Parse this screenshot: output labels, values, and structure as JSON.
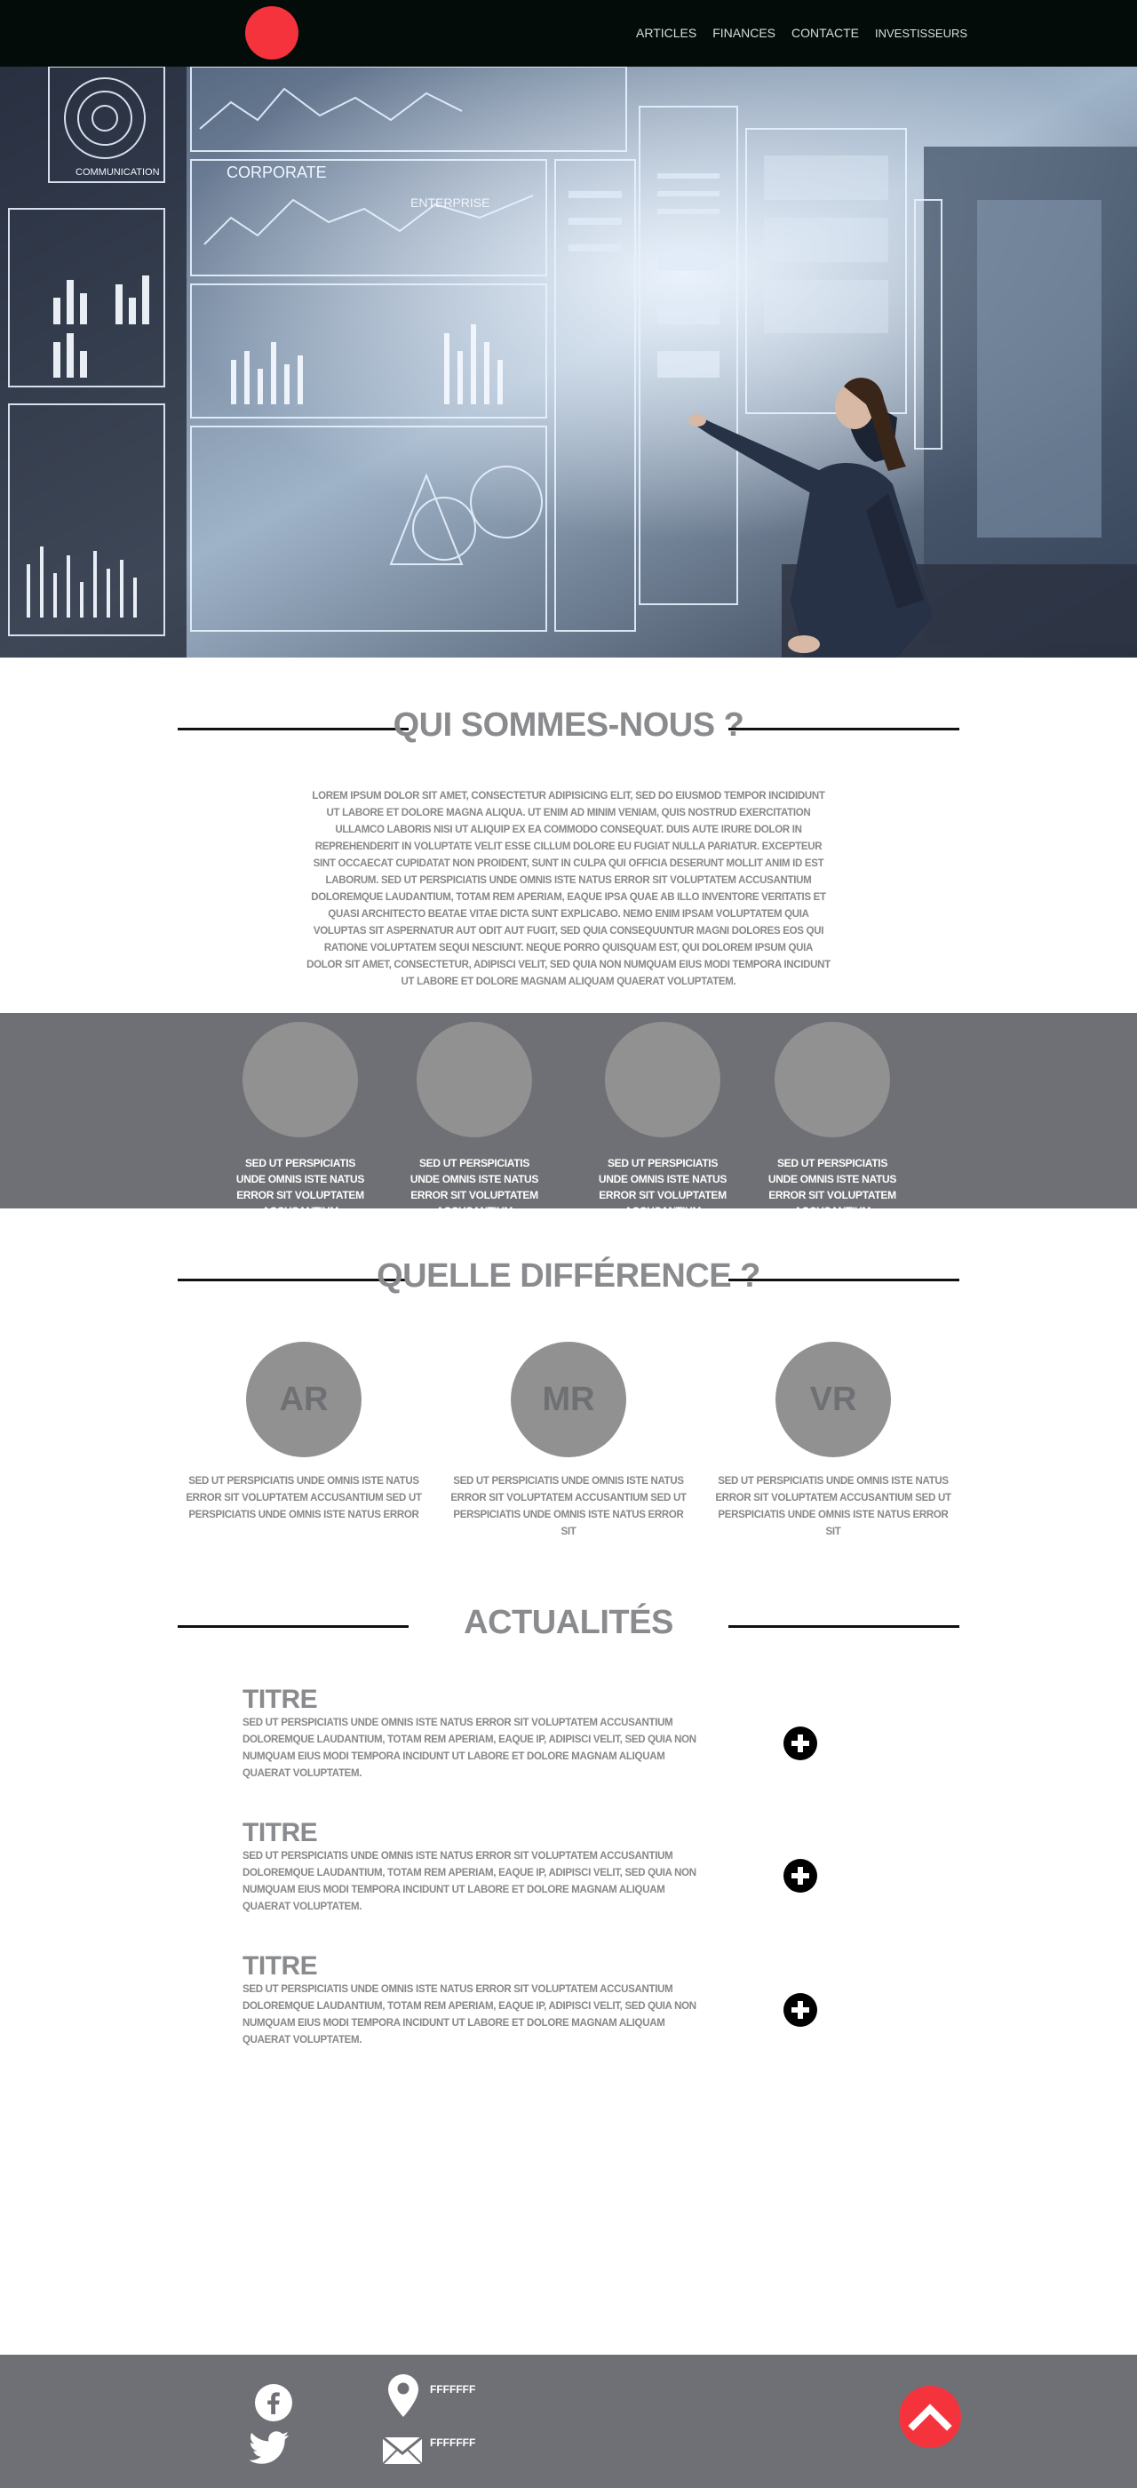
{
  "nav": {
    "items": [
      {
        "label": "ARTICLES"
      },
      {
        "label": "FINANCES"
      },
      {
        "label": "CONTACTE"
      },
      {
        "label": "INVESTISSEURS"
      }
    ]
  },
  "hero": {
    "panel_labels": [
      "COMMUNICATION",
      "CORPORATE",
      "ENTERPRISE"
    ]
  },
  "about": {
    "title": "QUI SOMMES-NOUS ?",
    "text": "LOREM IPSUM DOLOR SIT AMET, CONSECTETUR ADIPISICING ELIT, SED DO EIUSMOD TEMPOR INCIDIDUNT UT LABORE ET DOLORE MAGNA ALIQUA. UT ENIM AD MINIM VENIAM, QUIS NOSTRUD EXERCITATION ULLAMCO LABORIS NISI UT ALIQUIP EX EA COMMODO CONSEQUAT. DUIS AUTE IRURE DOLOR IN REPREHENDERIT IN VOLUPTATE VELIT ESSE CILLUM DOLORE EU FUGIAT NULLA PARIATUR. EXCEPTEUR SINT OCCAECAT CUPIDATAT NON PROIDENT, SUNT IN CULPA QUI OFFICIA DESERUNT MOLLIT ANIM ID EST LABORUM. SED UT PERSPICIATIS UNDE OMNIS ISTE NATUS ERROR SIT VOLUPTATEM ACCUSANTIUM DOLOREMQUE LAUDANTIUM, TOTAM REM APERIAM, EAQUE IPSA QUAE AB ILLO INVENTORE VERITATIS ET QUASI ARCHITECTO BEATAE VITAE DICTA SUNT EXPLICABO. NEMO ENIM IPSAM VOLUPTATEM QUIA VOLUPTAS SIT ASPERNATUR AUT ODIT AUT FUGIT, SED QUIA CONSEQUUNTUR MAGNI DOLORES EOS QUI RATIONE VOLUPTATEM SEQUI NESCIUNT. NEQUE PORRO QUISQUAM EST, QUI DOLOREM IPSUM QUIA DOLOR SIT AMET, CONSECTETUR, ADIPISCI VELIT, SED QUIA NON NUMQUAM EIUS MODI TEMPORA INCIDUNT UT LABORE ET DOLORE MAGNAM ALIQUAM QUAERAT VOLUPTATEM."
  },
  "team": {
    "members": [
      {
        "caption": "SED UT PERSPICIATIS UNDE OMNIS ISTE NATUS ERROR SIT VOLUPTATEM ACCUSANTIUM"
      },
      {
        "caption": "SED UT PERSPICIATIS UNDE OMNIS ISTE NATUS ERROR SIT VOLUPTATEM ACCUSANTIUM"
      },
      {
        "caption": "SED UT PERSPICIATIS UNDE OMNIS ISTE NATUS ERROR SIT VOLUPTATEM ACCUSANTIUM"
      },
      {
        "caption": "SED UT PERSPICIATIS UNDE OMNIS ISTE NATUS ERROR SIT VOLUPTATEM ACCUSANTIUM"
      }
    ]
  },
  "difference": {
    "title": "QUELLE DIFFÉRENCE ?",
    "items": [
      {
        "abbr": "AR",
        "text": "SED UT PERSPICIATIS UNDE OMNIS ISTE NATUS ERROR SIT VOLUPTATEM ACCUSANTIUM SED UT PERSPICIATIS UNDE OMNIS ISTE NATUS ERROR"
      },
      {
        "abbr": "MR",
        "text": "SED UT PERSPICIATIS UNDE OMNIS ISTE NATUS ERROR SIT VOLUPTATEM ACCUSANTIUM SED UT PERSPICIATIS UNDE OMNIS ISTE NATUS ERROR SIT"
      },
      {
        "abbr": "VR",
        "text": "SED UT PERSPICIATIS UNDE OMNIS ISTE NATUS ERROR SIT VOLUPTATEM ACCUSANTIUM SED UT PERSPICIATIS UNDE OMNIS ISTE NATUS ERROR SIT"
      }
    ]
  },
  "news": {
    "title": "ACTUALITÉS",
    "items": [
      {
        "title": "TITRE",
        "body": "SED UT PERSPICIATIS UNDE OMNIS ISTE NATUS ERROR SIT VOLUPTATEM ACCUSANTIUM DOLOREMQUE LAUDANTIUM, TOTAM REM APERIAM, EAQUE IP, ADIPISCI VELIT, SED QUIA NON NUMQUAM EIUS MODI TEMPORA INCIDUNT UT LABORE ET DOLORE MAGNAM ALIQUAM QUAERAT VOLUPTATEM."
      },
      {
        "title": "TITRE",
        "body": "SED UT PERSPICIATIS UNDE OMNIS ISTE NATUS ERROR SIT VOLUPTATEM ACCUSANTIUM DOLOREMQUE LAUDANTIUM, TOTAM REM APERIAM, EAQUE IP, ADIPISCI VELIT, SED QUIA NON NUMQUAM EIUS MODI TEMPORA INCIDUNT UT LABORE ET DOLORE MAGNAM ALIQUAM QUAERAT VOLUPTATEM."
      },
      {
        "title": "TITRE",
        "body": "SED UT PERSPICIATIS UNDE OMNIS ISTE NATUS ERROR SIT VOLUPTATEM ACCUSANTIUM DOLOREMQUE LAUDANTIUM, TOTAM REM APERIAM, EAQUE IP, ADIPISCI VELIT, SED QUIA NON NUMQUAM EIUS MODI TEMPORA INCIDUNT UT LABORE ET DOLORE MAGNAM ALIQUAM QUAERAT VOLUPTATEM."
      }
    ]
  },
  "footer": {
    "location_text": "FFFFFFF",
    "email_text": "FFFFFFF"
  },
  "colors": {
    "nav_bg": "#030c08",
    "accent_red": "#f5333c",
    "band_grey": "#6f7076",
    "circle_grey": "#919191",
    "heading_grey": "#8a8b8e"
  }
}
